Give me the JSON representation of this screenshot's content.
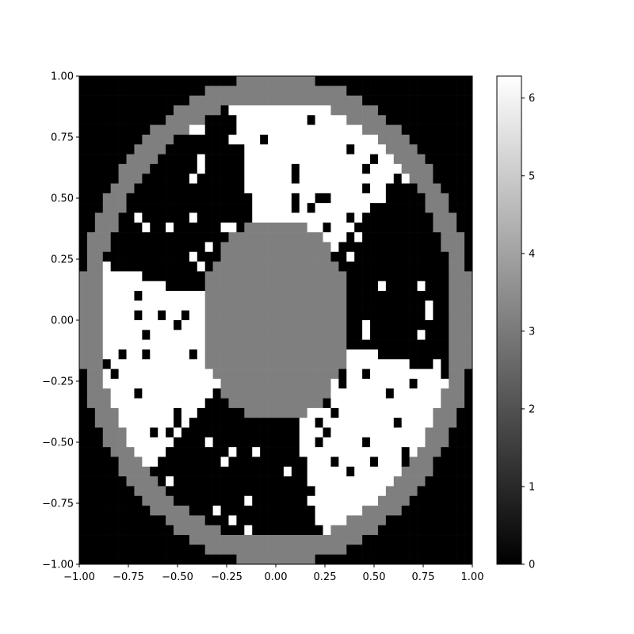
{
  "chart_data": {
    "type": "heatmap",
    "title": "",
    "xlabel": "",
    "ylabel": "",
    "colormap": "gray",
    "colors": {
      "low": "#000000",
      "high": "#ffffff",
      "mid": "#808080"
    },
    "grid": false,
    "xlim": [
      -1.0,
      1.0
    ],
    "ylim": [
      -1.0,
      1.0
    ],
    "x_ticks": [
      {
        "value": -1.0,
        "label": "−1.00"
      },
      {
        "value": -0.75,
        "label": "−0.75"
      },
      {
        "value": -0.5,
        "label": "−0.50"
      },
      {
        "value": -0.25,
        "label": "−0.25"
      },
      {
        "value": 0.0,
        "label": "0.00"
      },
      {
        "value": 0.25,
        "label": "0.25"
      },
      {
        "value": 0.5,
        "label": "0.50"
      },
      {
        "value": 0.75,
        "label": "0.75"
      },
      {
        "value": 1.0,
        "label": "1.00"
      }
    ],
    "y_ticks": [
      {
        "value": -1.0,
        "label": "−1.00"
      },
      {
        "value": -0.75,
        "label": "−0.75"
      },
      {
        "value": -0.5,
        "label": "−0.50"
      },
      {
        "value": -0.25,
        "label": "−0.25"
      },
      {
        "value": 0.0,
        "label": "0.00"
      },
      {
        "value": 0.25,
        "label": "0.25"
      },
      {
        "value": 0.5,
        "label": "0.50"
      },
      {
        "value": 0.75,
        "label": "0.75"
      },
      {
        "value": 1.0,
        "label": "1.00"
      }
    ],
    "colorbar": {
      "range": [
        0,
        6.283
      ],
      "ticks": [
        {
          "value": 0,
          "label": "0"
        },
        {
          "value": 1,
          "label": "1"
        },
        {
          "value": 2,
          "label": "2"
        },
        {
          "value": 3,
          "label": "3"
        },
        {
          "value": 4,
          "label": "4"
        },
        {
          "value": 5,
          "label": "5"
        },
        {
          "value": 6,
          "label": "6"
        }
      ]
    },
    "grid_size": 50,
    "regions": {
      "outside_value": 0,
      "ring_value": 3.14,
      "ring_radius_outer": 1.0,
      "ring_radius_inner": 0.9,
      "center_value": 3.14,
      "center_semi_axes": [
        0.38,
        0.42
      ],
      "center_offset": [
        0.0,
        0.0
      ],
      "white_value": 6.28,
      "black_value": 0
    }
  }
}
